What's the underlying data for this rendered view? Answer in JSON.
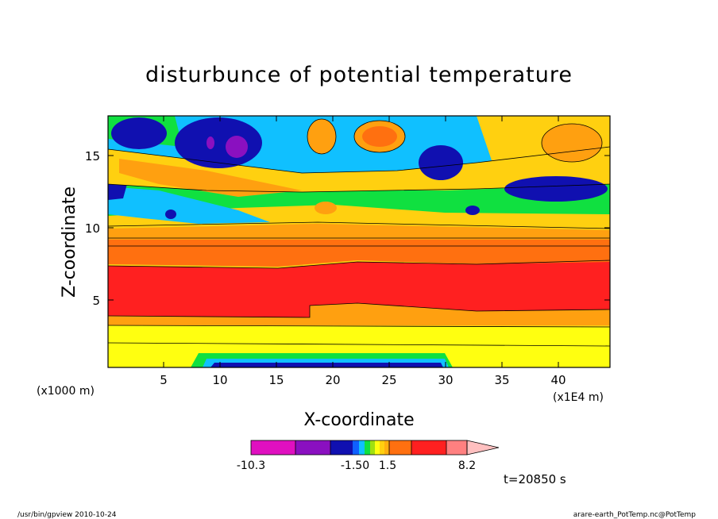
{
  "chart_data": {
    "type": "heatmap",
    "title": "disturbunce of potential temperature",
    "xlabel": "X-coordinate",
    "ylabel": "Z-coordinate",
    "x_units": "(x1E4 m)",
    "z_units": "(x1000 m)",
    "xlim": [
      0,
      44.5
    ],
    "ylim": [
      0,
      17.5
    ],
    "x_ticks": [
      5,
      10,
      15,
      20,
      25,
      30,
      35,
      40
    ],
    "y_ticks": [
      5,
      10,
      15
    ],
    "colorbar": {
      "labels": [
        "-10.3",
        "-1.50",
        "1.5",
        "8.2"
      ],
      "colors": [
        "#e010c0",
        "#8a10c0",
        "#1010b0",
        "#1060ff",
        "#10c0ff",
        "#10e040",
        "#a0e010",
        "#ffff10",
        "#ffd010",
        "#ffa010",
        "#ff7010",
        "#ff2020",
        "#ff8080",
        "#ffc0c0"
      ]
    },
    "time_label": "t=20850 s",
    "footer_left": "/usr/bin/gpview  2010-10-24",
    "footer_right": "arare-earth_PotTemp.nc@PotTemp"
  }
}
